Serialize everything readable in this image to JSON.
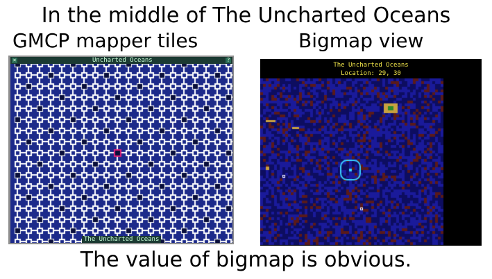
{
  "captions": {
    "title": "In the middle of The Uncharted Oceans",
    "left": "GMCP mapper tiles",
    "right": "Bigmap view",
    "bottom": "The value of bigmap is obvious."
  },
  "gmcp_panel": {
    "top_label": "Uncharted Oceans",
    "bottom_label": "The Uncharted Oceans",
    "close_glyph": "×",
    "help_glyph": "?",
    "colors": {
      "water": "#1c2a8a",
      "grid": "#0d1660",
      "tile": "#ffffff",
      "dark_tile": "#0a0f3c",
      "player_marker": "#e0207a"
    }
  },
  "bigmap_panel": {
    "area_name": "The Uncharted Oceans",
    "location": "Location: 29, 30",
    "colors": {
      "ocean": "#1a1a9a",
      "ocean_dark": "#0d0d60",
      "reef": "#5a1a1a",
      "player_ring": "#3ad1ff",
      "land": "#c8a040",
      "header_text": "#f2e64a"
    }
  }
}
